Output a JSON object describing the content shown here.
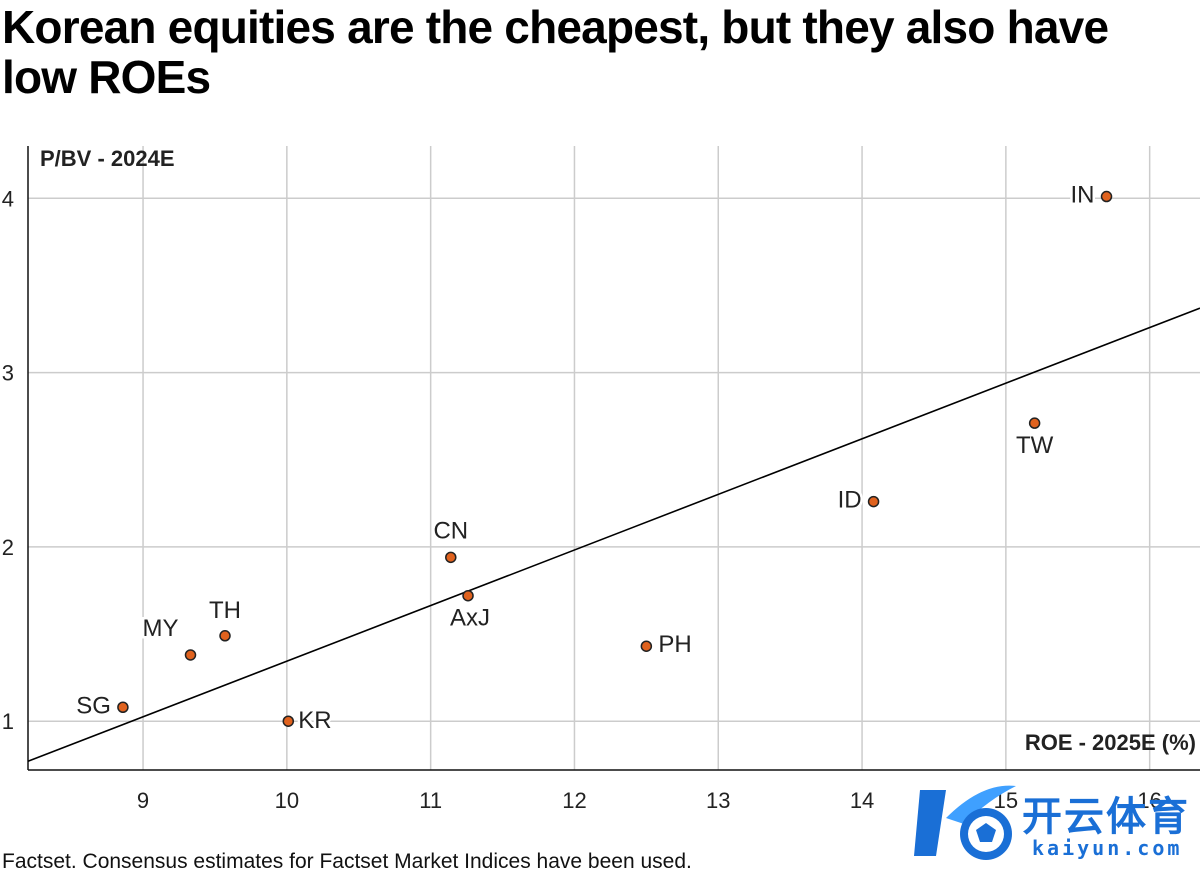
{
  "title": "Korean equities are the cheapest, but they also have low ROEs",
  "source": "Factset. Consensus estimates for Factset Market Indices have been used.",
  "watermark": {
    "text": "开云体育",
    "url": "kaiyun.com"
  },
  "colors": {
    "point_fill": "#e0621e",
    "point_stroke": "#222222",
    "grid": "#cccccc",
    "trend": "#000000"
  },
  "chart_data": {
    "type": "scatter",
    "title": "Korean equities are the cheapest, but they also have low ROEs",
    "xlabel": "ROE - 2025E (%)",
    "ylabel": "P/BV - 2024E",
    "xlim": [
      8.2,
      16.35
    ],
    "ylim": [
      0.72,
      4.3
    ],
    "x_ticks": [
      9,
      10,
      11,
      12,
      13,
      14,
      15,
      16
    ],
    "y_ticks": [
      1,
      2,
      3,
      4
    ],
    "grid": true,
    "points": [
      {
        "label": "IN",
        "x": 15.7,
        "y": 4.01
      },
      {
        "label": "TW",
        "x": 15.2,
        "y": 2.71
      },
      {
        "label": "ID",
        "x": 14.08,
        "y": 2.26
      },
      {
        "label": "CN",
        "x": 11.14,
        "y": 1.94
      },
      {
        "label": "AxJ",
        "x": 11.26,
        "y": 1.72
      },
      {
        "label": "PH",
        "x": 12.5,
        "y": 1.43
      },
      {
        "label": "TH",
        "x": 9.57,
        "y": 1.49
      },
      {
        "label": "MY",
        "x": 9.33,
        "y": 1.38
      },
      {
        "label": "SG",
        "x": 8.86,
        "y": 1.08
      },
      {
        "label": "KR",
        "x": 10.01,
        "y": 1.0
      }
    ],
    "trendline": {
      "x": [
        8.2,
        16.35
      ],
      "y": [
        0.77,
        3.37
      ]
    }
  }
}
